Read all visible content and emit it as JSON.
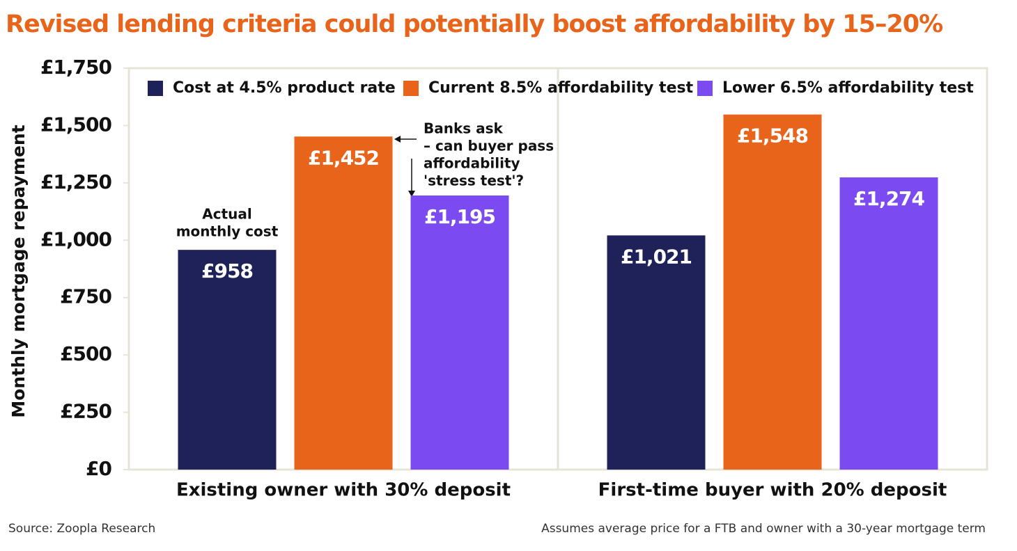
{
  "chart_data": {
    "type": "bar",
    "title": "Revised lending criteria could potentially boost affordability by 15–20%",
    "y_label": "Monthly mortgage repayment",
    "categories": [
      "Existing owner with 30% deposit",
      "First-time buyer with 20% deposit"
    ],
    "series": [
      {
        "name": "Cost at 4.5% product rate",
        "color": "#1f2159",
        "values": [
          958,
          1021
        ],
        "value_labels": [
          "£958",
          "£1,021"
        ]
      },
      {
        "name": "Current 8.5% affordability test",
        "color": "#e8641b",
        "values": [
          1452,
          1548
        ],
        "value_labels": [
          "£1,452",
          "£1,548"
        ]
      },
      {
        "name": "Lower 6.5% affordability test",
        "color": "#7b4af0",
        "values": [
          1195,
          1274
        ],
        "value_labels": [
          "£1,195",
          "£1,274"
        ]
      }
    ],
    "ylim": [
      0,
      1750
    ],
    "yticks": [
      {
        "value": 0,
        "label": "£0"
      },
      {
        "value": 250,
        "label": "£250"
      },
      {
        "value": 500,
        "label": "£500"
      },
      {
        "value": 750,
        "label": "£750"
      },
      {
        "value": 1000,
        "label": "£1,000"
      },
      {
        "value": 1250,
        "label": "£1,250"
      },
      {
        "value": 1500,
        "label": "£1,500"
      },
      {
        "value": 1750,
        "label": "£1,750"
      }
    ],
    "annotations": [
      {
        "lines": [
          "Actual",
          "monthly cost"
        ]
      },
      {
        "lines": [
          "Banks ask",
          "– can buyer pass",
          "affordability",
          "'stress test'?"
        ]
      }
    ],
    "source": "Source: Zoopla Research",
    "note": "Assumes average price for a FTB and owner with a 30-year mortgage term"
  }
}
